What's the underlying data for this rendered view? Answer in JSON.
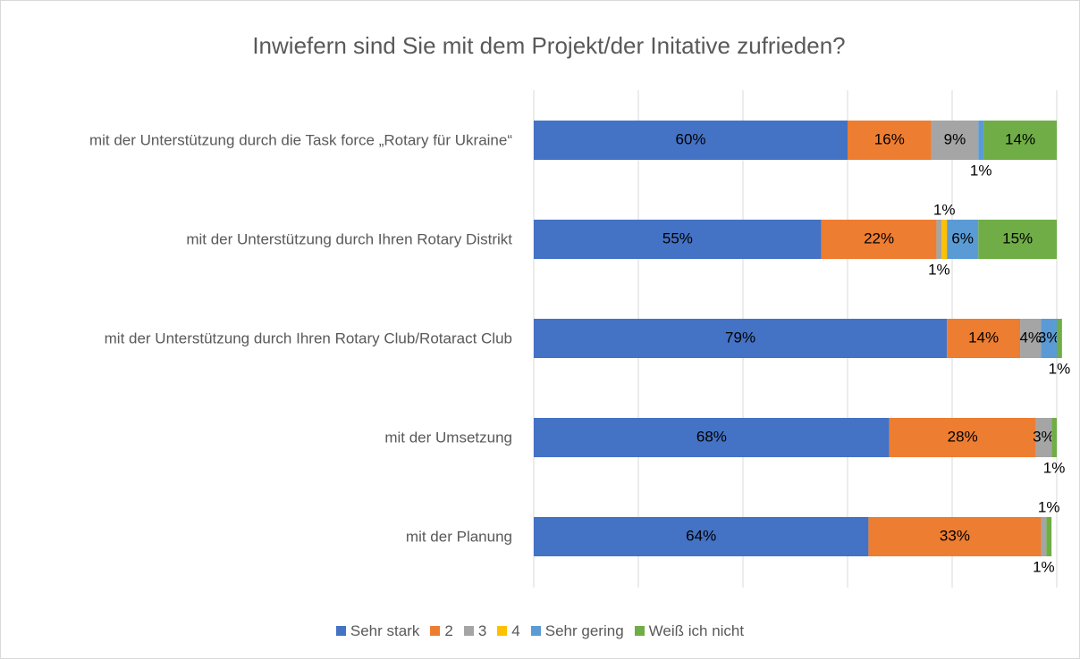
{
  "chart_data": {
    "type": "stacked_bar_horizontal",
    "title": "Inwiefern sind Sie mit dem Projekt/der Initative zufrieden?",
    "categories": [
      "mit der Unterstützung durch die Task force „Rotary für Ukraine“",
      "mit der Unterstützung durch Ihren Rotary Distrikt",
      "mit der Unterstützung durch Ihren Rotary Club/Rotaract Club",
      "mit der Umsetzung",
      "mit der Planung"
    ],
    "series": [
      {
        "name": "Sehr stark",
        "color": "#4472c4",
        "values": [
          60,
          55,
          79,
          68,
          64
        ]
      },
      {
        "name": "2",
        "color": "#ed7d31",
        "values": [
          16,
          22,
          14,
          28,
          33
        ]
      },
      {
        "name": "3",
        "color": "#a5a5a5",
        "values": [
          9,
          1,
          4,
          3,
          1
        ]
      },
      {
        "name": "4",
        "color": "#ffc000",
        "values": [
          null,
          1,
          null,
          null,
          null
        ]
      },
      {
        "name": "Sehr gering",
        "color": "#5b9bd5",
        "values": [
          1,
          6,
          3,
          null,
          null
        ]
      },
      {
        "name": "Weiß ich nicht",
        "color": "#70ad47",
        "values": [
          14,
          15,
          1,
          1,
          1
        ]
      }
    ],
    "value_labels": [
      [
        "60%",
        "55%",
        "79%",
        "68%",
        "64%"
      ],
      [
        "16%",
        "22%",
        "14%",
        "28%",
        "33%"
      ],
      [
        "9%",
        "1%",
        "4%",
        "3%",
        "1%"
      ],
      [
        null,
        "1%",
        null,
        null,
        null
      ],
      [
        "1%",
        "6%",
        "3%",
        null,
        null
      ],
      [
        "14%",
        "15%",
        "1%",
        "1%",
        "1%"
      ]
    ],
    "xlim": [
      0,
      100
    ],
    "xticks": [
      0,
      20,
      40,
      60,
      80,
      100
    ],
    "grid": true,
    "legend": "bottom"
  }
}
